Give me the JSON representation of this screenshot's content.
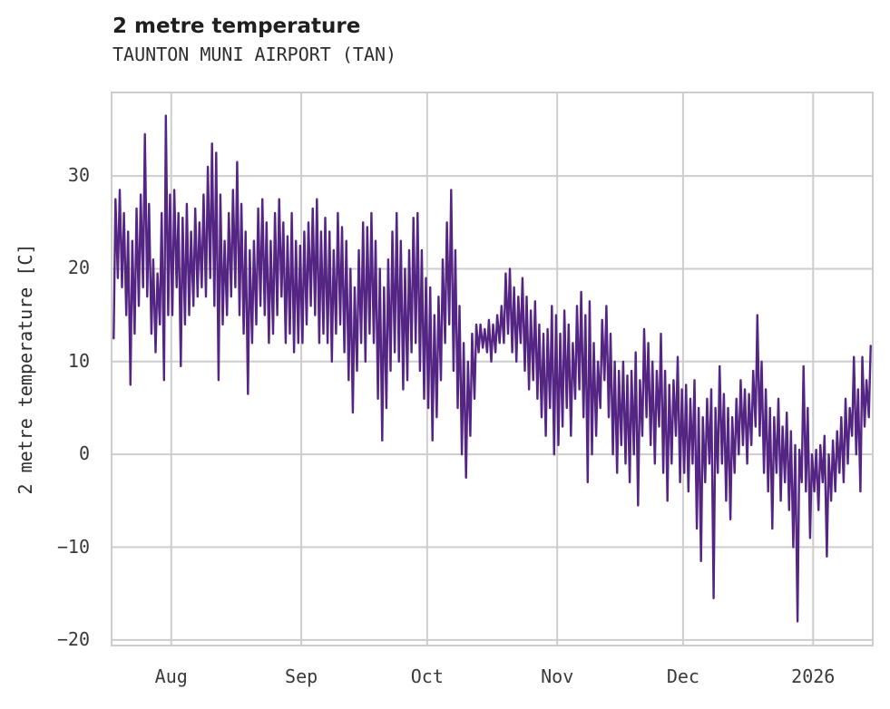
{
  "header": {
    "title": "2 metre temperature",
    "subtitle": "TAUNTON MUNI AIRPORT (TAN)"
  },
  "colors": {
    "line": "#542583",
    "grid": "#cdcdcd",
    "title_text": "#1f1f1f",
    "tick_text": "#3a3a3a",
    "background": "#ffffff"
  },
  "chart_data": {
    "type": "line",
    "title": "2 metre temperature",
    "subtitle": "TAUNTON MUNI AIRPORT (TAN)",
    "xlabel": "",
    "ylabel": "2 metre temperature [C]",
    "legend_position": "none",
    "grid": true,
    "line_color": "#542583",
    "y_ticks": [
      30,
      20,
      10,
      0,
      -10,
      -20
    ],
    "y_domain": [
      -20.5,
      38.9
    ],
    "x_tick_labels": [
      "Aug",
      "Sep",
      "Oct",
      "Nov",
      "Dec",
      "2026"
    ],
    "x_tick_day_offsets": [
      14,
      45,
      75,
      106,
      136,
      167
    ],
    "days_total": 181,
    "series_note": "hourly 2 m temperature drawn as daily min/max zigzag; day 0 is about two weeks before the Aug tick",
    "daily_high": [
      27.5,
      28.5,
      26,
      24,
      23,
      26.5,
      28,
      34.5,
      27,
      21,
      19.5,
      26,
      36.5,
      28,
      28.5,
      26,
      25.5,
      27,
      24,
      26.5,
      25,
      28,
      31,
      33.5,
      32.5,
      28,
      23,
      26,
      28.5,
      31.5,
      27,
      24,
      22,
      23,
      26.5,
      27.5,
      25,
      23,
      26,
      27.5,
      25,
      23.5,
      26,
      23,
      22.5,
      24,
      25,
      26.5,
      27.5,
      24,
      25.5,
      24,
      22,
      26,
      24.5,
      23,
      20,
      18,
      22,
      25,
      24.5,
      26,
      23,
      20,
      18,
      21,
      24,
      26,
      23,
      20,
      22,
      25.5,
      26,
      22,
      19,
      18,
      15,
      17,
      21,
      25,
      28.5,
      22,
      16,
      12,
      10,
      13,
      14,
      14,
      13.5,
      14.5,
      14,
      15,
      16,
      19.5,
      20,
      18,
      17,
      19,
      17,
      15.5,
      16.5,
      14,
      13,
      13.5,
      16,
      15,
      13,
      15.5,
      14,
      12,
      16,
      17.5,
      15,
      16.5,
      12,
      10,
      14.5,
      16,
      13,
      10,
      9,
      10,
      8.5,
      9,
      11,
      8,
      13.5,
      12,
      10,
      9,
      13,
      9,
      7.5,
      8,
      10.5,
      7,
      7.5,
      6,
      8,
      5,
      4,
      6,
      7,
      5,
      9.5,
      6.5,
      5,
      4,
      6,
      8,
      7,
      6.5,
      9,
      15,
      10,
      7,
      5,
      4,
      6,
      3,
      4.5,
      2.5,
      1,
      0.5,
      9.5,
      5,
      0,
      0.5,
      1,
      2,
      0,
      1.5,
      2.5,
      4,
      6,
      5,
      10.5,
      7,
      10.5,
      8,
      11.7
    ],
    "daily_low": [
      12.5,
      19,
      18,
      15,
      7.5,
      13,
      16,
      18,
      17,
      13,
      11,
      14,
      8,
      15,
      15,
      18,
      9.5,
      14,
      15,
      16,
      17,
      18,
      17,
      19,
      16,
      8,
      14,
      15,
      17,
      18,
      15,
      13,
      6.5,
      12,
      14,
      16,
      15,
      12,
      13,
      15,
      17,
      12,
      13,
      11,
      12,
      12,
      14,
      16,
      15,
      12,
      13,
      12,
      10,
      13,
      14,
      11,
      8,
      4.5,
      9,
      12,
      10,
      13,
      12,
      6,
      1.5,
      5,
      9,
      11,
      10,
      7,
      8,
      11,
      12,
      9,
      6,
      5,
      1.5,
      4,
      8,
      12,
      14,
      9,
      5,
      0,
      -2.5,
      2,
      6,
      11,
      11.5,
      11,
      10,
      11,
      12,
      12,
      13,
      11,
      10,
      12,
      9,
      7,
      8,
      6,
      4,
      2,
      5,
      0,
      1,
      3,
      5,
      2,
      6,
      7,
      4,
      -3,
      0,
      2,
      5,
      8,
      4,
      0,
      -2,
      1,
      -1,
      -3,
      0,
      -5.5,
      2,
      4,
      1,
      -1,
      3,
      -2,
      -5,
      -1,
      2,
      -3,
      -2,
      -4,
      -1,
      -8,
      -11.5,
      -3,
      -1,
      -15.5,
      -2,
      -1,
      -5,
      -7,
      -2,
      0,
      1,
      -1,
      1,
      3,
      2,
      -2,
      -4,
      -8,
      -2,
      -5,
      -3,
      -6,
      -10,
      -18,
      -3,
      -4,
      -9,
      -4,
      -6,
      -3,
      -11,
      -5,
      -4,
      -2,
      -3,
      -1,
      2,
      0,
      -4,
      3,
      4
    ]
  }
}
